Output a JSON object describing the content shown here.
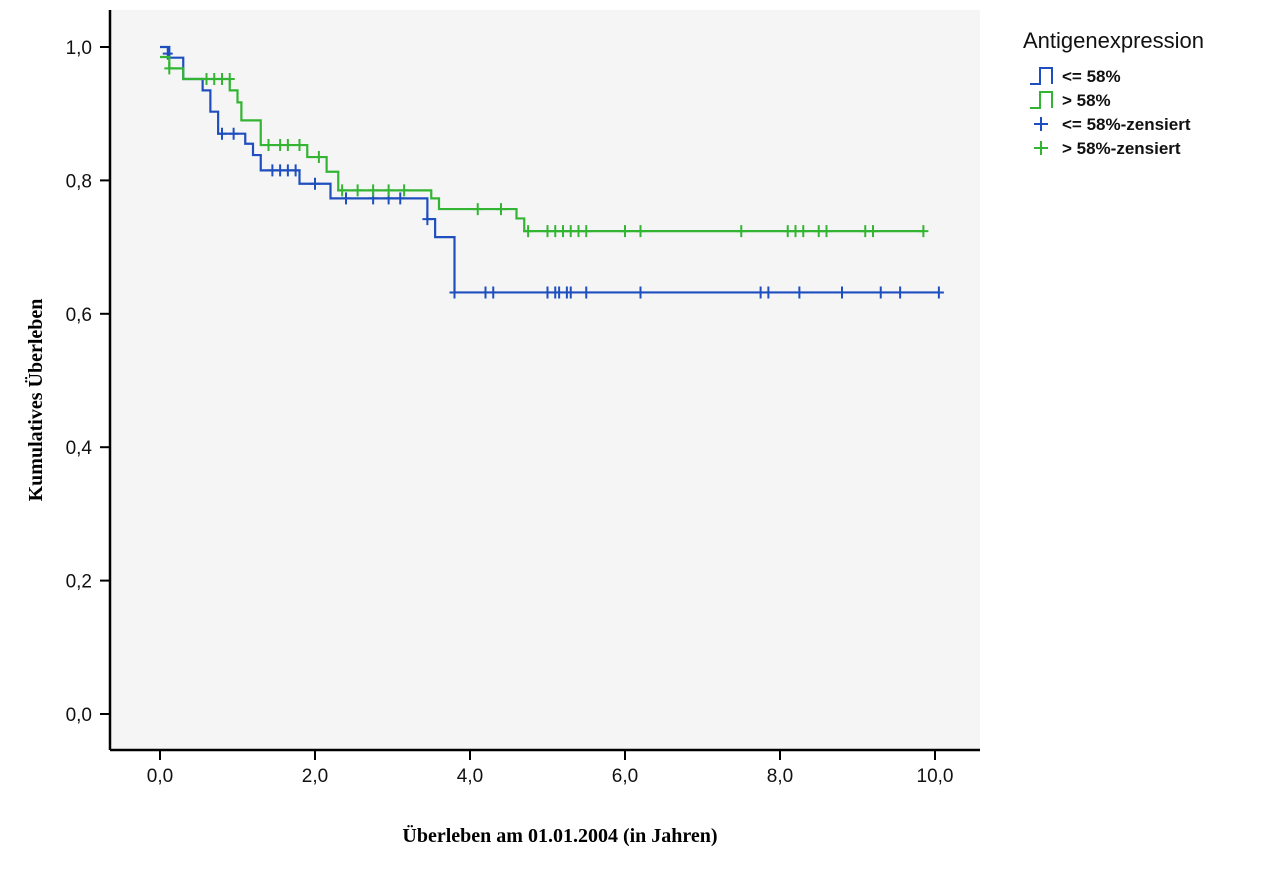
{
  "chart_data": {
    "type": "line",
    "subtype": "kaplan-meier-step",
    "xlabel": "Überleben am 01.01.2004 (in Jahren)",
    "ylabel": "Kumulatives Überleben",
    "xlim": [
      -0.5,
      10.3
    ],
    "ylim": [
      -0.05,
      1.05
    ],
    "x_ticks": [
      0,
      2,
      4,
      6,
      8,
      10
    ],
    "x_tick_labels": [
      "0,0",
      "2,0",
      "4,0",
      "6,0",
      "8,0",
      "10,0"
    ],
    "y_ticks": [
      0,
      0.2,
      0.4,
      0.6,
      0.8,
      1.0
    ],
    "y_tick_labels": [
      "0,0",
      "0,2",
      "0,4",
      "0,6",
      "0,8",
      "1,0"
    ],
    "grid": false,
    "legend": {
      "title": "Antigenexpression",
      "position": "top-right outside",
      "entries": [
        {
          "label": "<= 58%",
          "kind": "step",
          "color": "#1f4fbf"
        },
        {
          "label": "> 58%",
          "kind": "step",
          "color": "#33b533"
        },
        {
          "label": "<= 58%-zensiert",
          "kind": "censor",
          "color": "#1f4fbf"
        },
        {
          "label": "> 58%-zensiert",
          "kind": "censor",
          "color": "#33b533"
        }
      ]
    },
    "series": [
      {
        "name": "<= 58%",
        "color": "#1f4fbf",
        "steps": [
          [
            0.0,
            1.0
          ],
          [
            0.12,
            0.984
          ],
          [
            0.3,
            0.952
          ],
          [
            0.55,
            0.935
          ],
          [
            0.65,
            0.903
          ],
          [
            0.75,
            0.87
          ],
          [
            1.1,
            0.855
          ],
          [
            1.2,
            0.838
          ],
          [
            1.3,
            0.815
          ],
          [
            1.8,
            0.795
          ],
          [
            2.2,
            0.773
          ],
          [
            3.45,
            0.742
          ],
          [
            3.55,
            0.715
          ],
          [
            3.8,
            0.632
          ]
        ],
        "end_x": 10.05,
        "censored": [
          [
            0.1,
            0.99
          ],
          [
            0.8,
            0.87
          ],
          [
            0.95,
            0.87
          ],
          [
            1.45,
            0.815
          ],
          [
            1.55,
            0.815
          ],
          [
            1.65,
            0.815
          ],
          [
            1.75,
            0.815
          ],
          [
            2.0,
            0.795
          ],
          [
            2.4,
            0.773
          ],
          [
            2.75,
            0.773
          ],
          [
            2.95,
            0.773
          ],
          [
            3.1,
            0.773
          ],
          [
            3.45,
            0.742
          ],
          [
            3.8,
            0.632
          ],
          [
            4.2,
            0.632
          ],
          [
            4.3,
            0.632
          ],
          [
            5.0,
            0.632
          ],
          [
            5.1,
            0.632
          ],
          [
            5.15,
            0.632
          ],
          [
            5.25,
            0.632
          ],
          [
            5.3,
            0.632
          ],
          [
            5.5,
            0.632
          ],
          [
            6.2,
            0.632
          ],
          [
            7.75,
            0.632
          ],
          [
            7.85,
            0.632
          ],
          [
            8.25,
            0.632
          ],
          [
            8.8,
            0.632
          ],
          [
            9.3,
            0.632
          ],
          [
            9.55,
            0.632
          ],
          [
            10.05,
            0.632
          ]
        ]
      },
      {
        "name": "> 58%",
        "color": "#33b533",
        "steps": [
          [
            0.0,
            0.985
          ],
          [
            0.12,
            0.968
          ],
          [
            0.3,
            0.952
          ],
          [
            0.5,
            0.952
          ],
          [
            0.9,
            0.935
          ],
          [
            1.0,
            0.917
          ],
          [
            1.05,
            0.89
          ],
          [
            1.3,
            0.853
          ],
          [
            1.9,
            0.835
          ],
          [
            2.15,
            0.813
          ],
          [
            2.3,
            0.785
          ],
          [
            3.5,
            0.773
          ],
          [
            3.6,
            0.757
          ],
          [
            4.6,
            0.743
          ],
          [
            4.7,
            0.724
          ]
        ],
        "end_x": 9.85,
        "censored": [
          [
            0.12,
            0.968
          ],
          [
            0.6,
            0.952
          ],
          [
            0.7,
            0.952
          ],
          [
            0.8,
            0.952
          ],
          [
            0.9,
            0.952
          ],
          [
            1.4,
            0.853
          ],
          [
            1.55,
            0.853
          ],
          [
            1.65,
            0.853
          ],
          [
            1.8,
            0.853
          ],
          [
            2.05,
            0.835
          ],
          [
            2.35,
            0.785
          ],
          [
            2.55,
            0.785
          ],
          [
            2.75,
            0.785
          ],
          [
            2.95,
            0.785
          ],
          [
            3.15,
            0.785
          ],
          [
            4.1,
            0.757
          ],
          [
            4.4,
            0.757
          ],
          [
            4.75,
            0.724
          ],
          [
            5.0,
            0.724
          ],
          [
            5.1,
            0.724
          ],
          [
            5.2,
            0.724
          ],
          [
            5.3,
            0.724
          ],
          [
            5.4,
            0.724
          ],
          [
            5.5,
            0.724
          ],
          [
            6.0,
            0.724
          ],
          [
            6.2,
            0.724
          ],
          [
            7.5,
            0.724
          ],
          [
            8.1,
            0.724
          ],
          [
            8.2,
            0.724
          ],
          [
            8.3,
            0.724
          ],
          [
            8.5,
            0.724
          ],
          [
            8.6,
            0.724
          ],
          [
            9.1,
            0.724
          ],
          [
            9.2,
            0.724
          ],
          [
            9.85,
            0.724
          ]
        ]
      }
    ]
  }
}
